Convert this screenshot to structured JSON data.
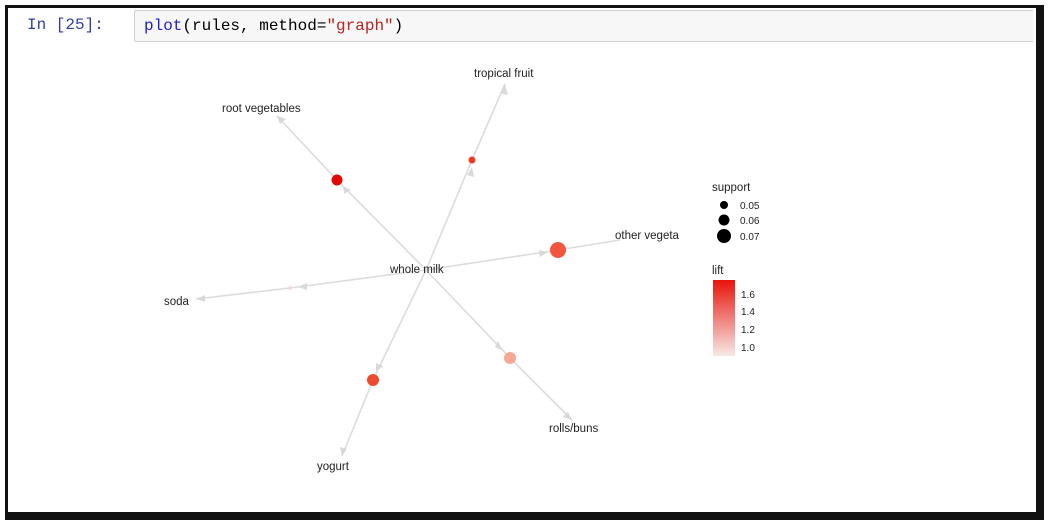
{
  "cell": {
    "prompt": "In [25]:",
    "code_fn": "plot",
    "code_args_pre": "(rules, method=",
    "code_string": "\"graph\"",
    "code_args_post": ")"
  },
  "graph": {
    "center": "whole milk",
    "items": [
      {
        "label": "tropical fruit"
      },
      {
        "label": "root vegetables"
      },
      {
        "label": "other vegeta"
      },
      {
        "label": "soda"
      },
      {
        "label": "rolls/buns"
      },
      {
        "label": "yogurt"
      }
    ]
  },
  "legend": {
    "support_title": "support",
    "support_values": [
      "0.05",
      "0.06",
      "0.07"
    ],
    "lift_title": "lift",
    "lift_ticks": [
      "1.6",
      "1.4",
      "1.2",
      "1.0"
    ]
  },
  "colors": {
    "edge": "#dcdcdc",
    "lift_high": "#e8140a",
    "lift_low": "#f7e9e8"
  }
}
